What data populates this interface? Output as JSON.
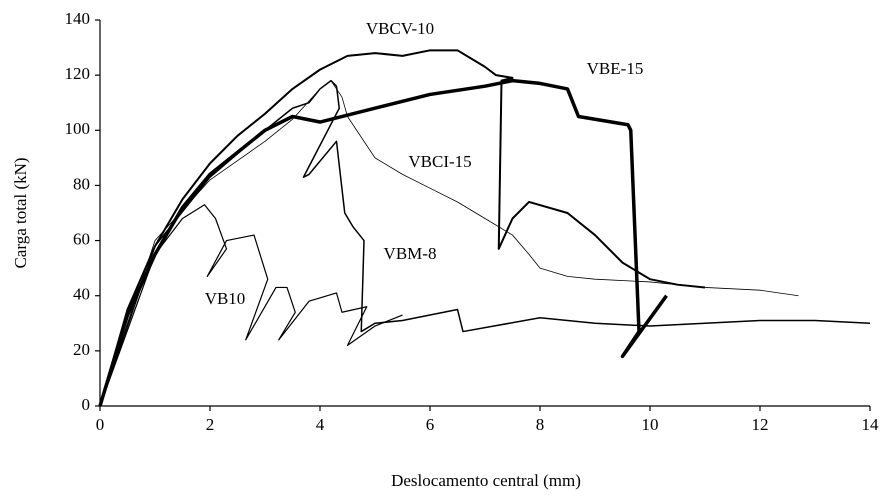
{
  "chart_data": {
    "type": "line",
    "x_label": "Deslocamento central (mm)",
    "y_label": "Carga total (kN)",
    "xlim": [
      0,
      14
    ],
    "xticks": [
      0,
      2,
      4,
      6,
      8,
      10,
      12,
      14
    ],
    "ylim": [
      0,
      140
    ],
    "yticks": [
      0,
      20,
      40,
      60,
      80,
      100,
      120,
      140
    ],
    "series": [
      {
        "name": "VBCV-10",
        "color": "#000000",
        "x": [
          0,
          0.5,
          1,
          1.5,
          2,
          2.5,
          3,
          3.5,
          4,
          4.5,
          5,
          5.5,
          6,
          6.5,
          7,
          7.2,
          7.5,
          7.3,
          7.25,
          7.5,
          7.8,
          8.5,
          9,
          9.5,
          10,
          10.5,
          11
        ],
        "values": [
          0,
          35,
          58,
          75,
          88,
          98,
          106,
          115,
          122,
          127,
          128,
          127,
          129,
          129,
          123,
          120,
          119,
          118,
          57,
          68,
          74,
          70,
          62,
          52,
          46,
          44,
          43
        ]
      },
      {
        "name": "VBE-15",
        "color": "#000000",
        "x": [
          0,
          0.5,
          1,
          1.5,
          2,
          2.5,
          3,
          3.5,
          4,
          5,
          6,
          7,
          7.5,
          8,
          8.5,
          8.7,
          9,
          9.6,
          9.65,
          9.8,
          9.5,
          10.3
        ],
        "values": [
          0,
          33,
          55,
          72,
          84,
          92,
          100,
          105,
          103,
          108,
          113,
          116,
          118,
          117,
          115,
          105,
          104,
          102,
          100,
          27,
          18,
          40
        ]
      },
      {
        "name": "VBCI-15",
        "color": "#000000",
        "x": [
          0,
          1,
          2,
          3,
          3.5,
          4,
          4.2,
          4.4,
          4.5,
          5,
          5.5,
          6,
          6.5,
          7,
          7.5,
          7.8,
          8,
          8.5,
          9,
          10,
          11,
          12,
          12.7
        ],
        "values": [
          0,
          60,
          82,
          96,
          104,
          115,
          118,
          112,
          105,
          90,
          84,
          79,
          74,
          68,
          62,
          55,
          50,
          47,
          46,
          45,
          43,
          42,
          40
        ]
      },
      {
        "name": "VBM-8",
        "color": "#000000",
        "x": [
          0,
          1,
          2,
          3,
          3.5,
          3.8,
          4,
          4.2,
          4.3,
          4.35,
          3.7,
          3.8,
          4.3,
          4.45,
          4.6,
          4.8,
          4.75,
          5,
          5.5,
          6.5,
          6.6,
          8,
          9,
          10,
          11,
          12,
          13,
          14
        ],
        "values": [
          0,
          58,
          83,
          100,
          108,
          110,
          115,
          118,
          116,
          108,
          83,
          84,
          96,
          70,
          65,
          60,
          27,
          30,
          31,
          35,
          27,
          32,
          30,
          29,
          30,
          31,
          31,
          30
        ]
      },
      {
        "name": "VB10",
        "color": "#000000",
        "x": [
          0,
          1,
          1.5,
          1.9,
          2.1,
          2.3,
          1.95,
          2.3,
          2.8,
          3.05,
          2.65,
          3.2,
          3.4,
          3.55,
          3.25,
          3.8,
          4.3,
          4.4,
          4.85,
          4.5,
          5,
          5.5
        ],
        "values": [
          0,
          55,
          68,
          73,
          68,
          57,
          47,
          60,
          62,
          46,
          24,
          43,
          43,
          34,
          24,
          38,
          41,
          34,
          36,
          22,
          29,
          33
        ]
      }
    ]
  }
}
